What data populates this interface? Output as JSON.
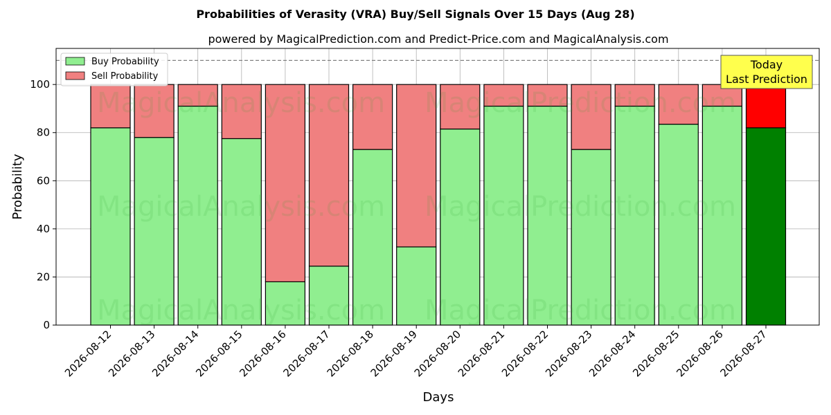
{
  "chart_data": {
    "type": "bar",
    "stacked": true,
    "title": "Probabilities of Verasity (VRA) Buy/Sell Signals Over 15 Days (Aug 28)",
    "subtitle": "powered by MagicalPrediction.com and Predict-Price.com and MagicalAnalysis.com",
    "xlabel": "Days",
    "ylabel": "Probability",
    "ylim": [
      0,
      115
    ],
    "yticks": [
      0,
      20,
      40,
      60,
      80,
      100
    ],
    "reference_line": 110,
    "grid": true,
    "legend_position": "top-left",
    "categories": [
      "2026-08-12",
      "2026-08-13",
      "2026-08-14",
      "2026-08-15",
      "2026-08-16",
      "2026-08-17",
      "2026-08-18",
      "2026-08-19",
      "2026-08-20",
      "2026-08-21",
      "2026-08-22",
      "2026-08-23",
      "2026-08-24",
      "2026-08-25",
      "2026-08-26",
      "2026-08-27"
    ],
    "series": [
      {
        "name": "Buy Probability",
        "color": "#90ee90",
        "values": [
          82,
          78,
          91,
          77.5,
          18,
          24.5,
          73,
          32.5,
          81.5,
          91,
          91,
          73,
          91,
          83.5,
          91,
          82
        ]
      },
      {
        "name": "Sell Probability",
        "color": "#f08080",
        "values": [
          18,
          22,
          9,
          22.5,
          82,
          75.5,
          27,
          67.5,
          18.5,
          9,
          9,
          27,
          9,
          16.5,
          9,
          18
        ]
      }
    ],
    "highlight": {
      "index": 15,
      "buy_color": "#008000",
      "sell_color": "#ff0000"
    },
    "annotation": {
      "lines": [
        "Today",
        "Last Prediction"
      ],
      "background": "#ffff4d"
    },
    "watermarks": [
      "MagicalAnalysis.com",
      "MagicalPrediction.com"
    ]
  }
}
